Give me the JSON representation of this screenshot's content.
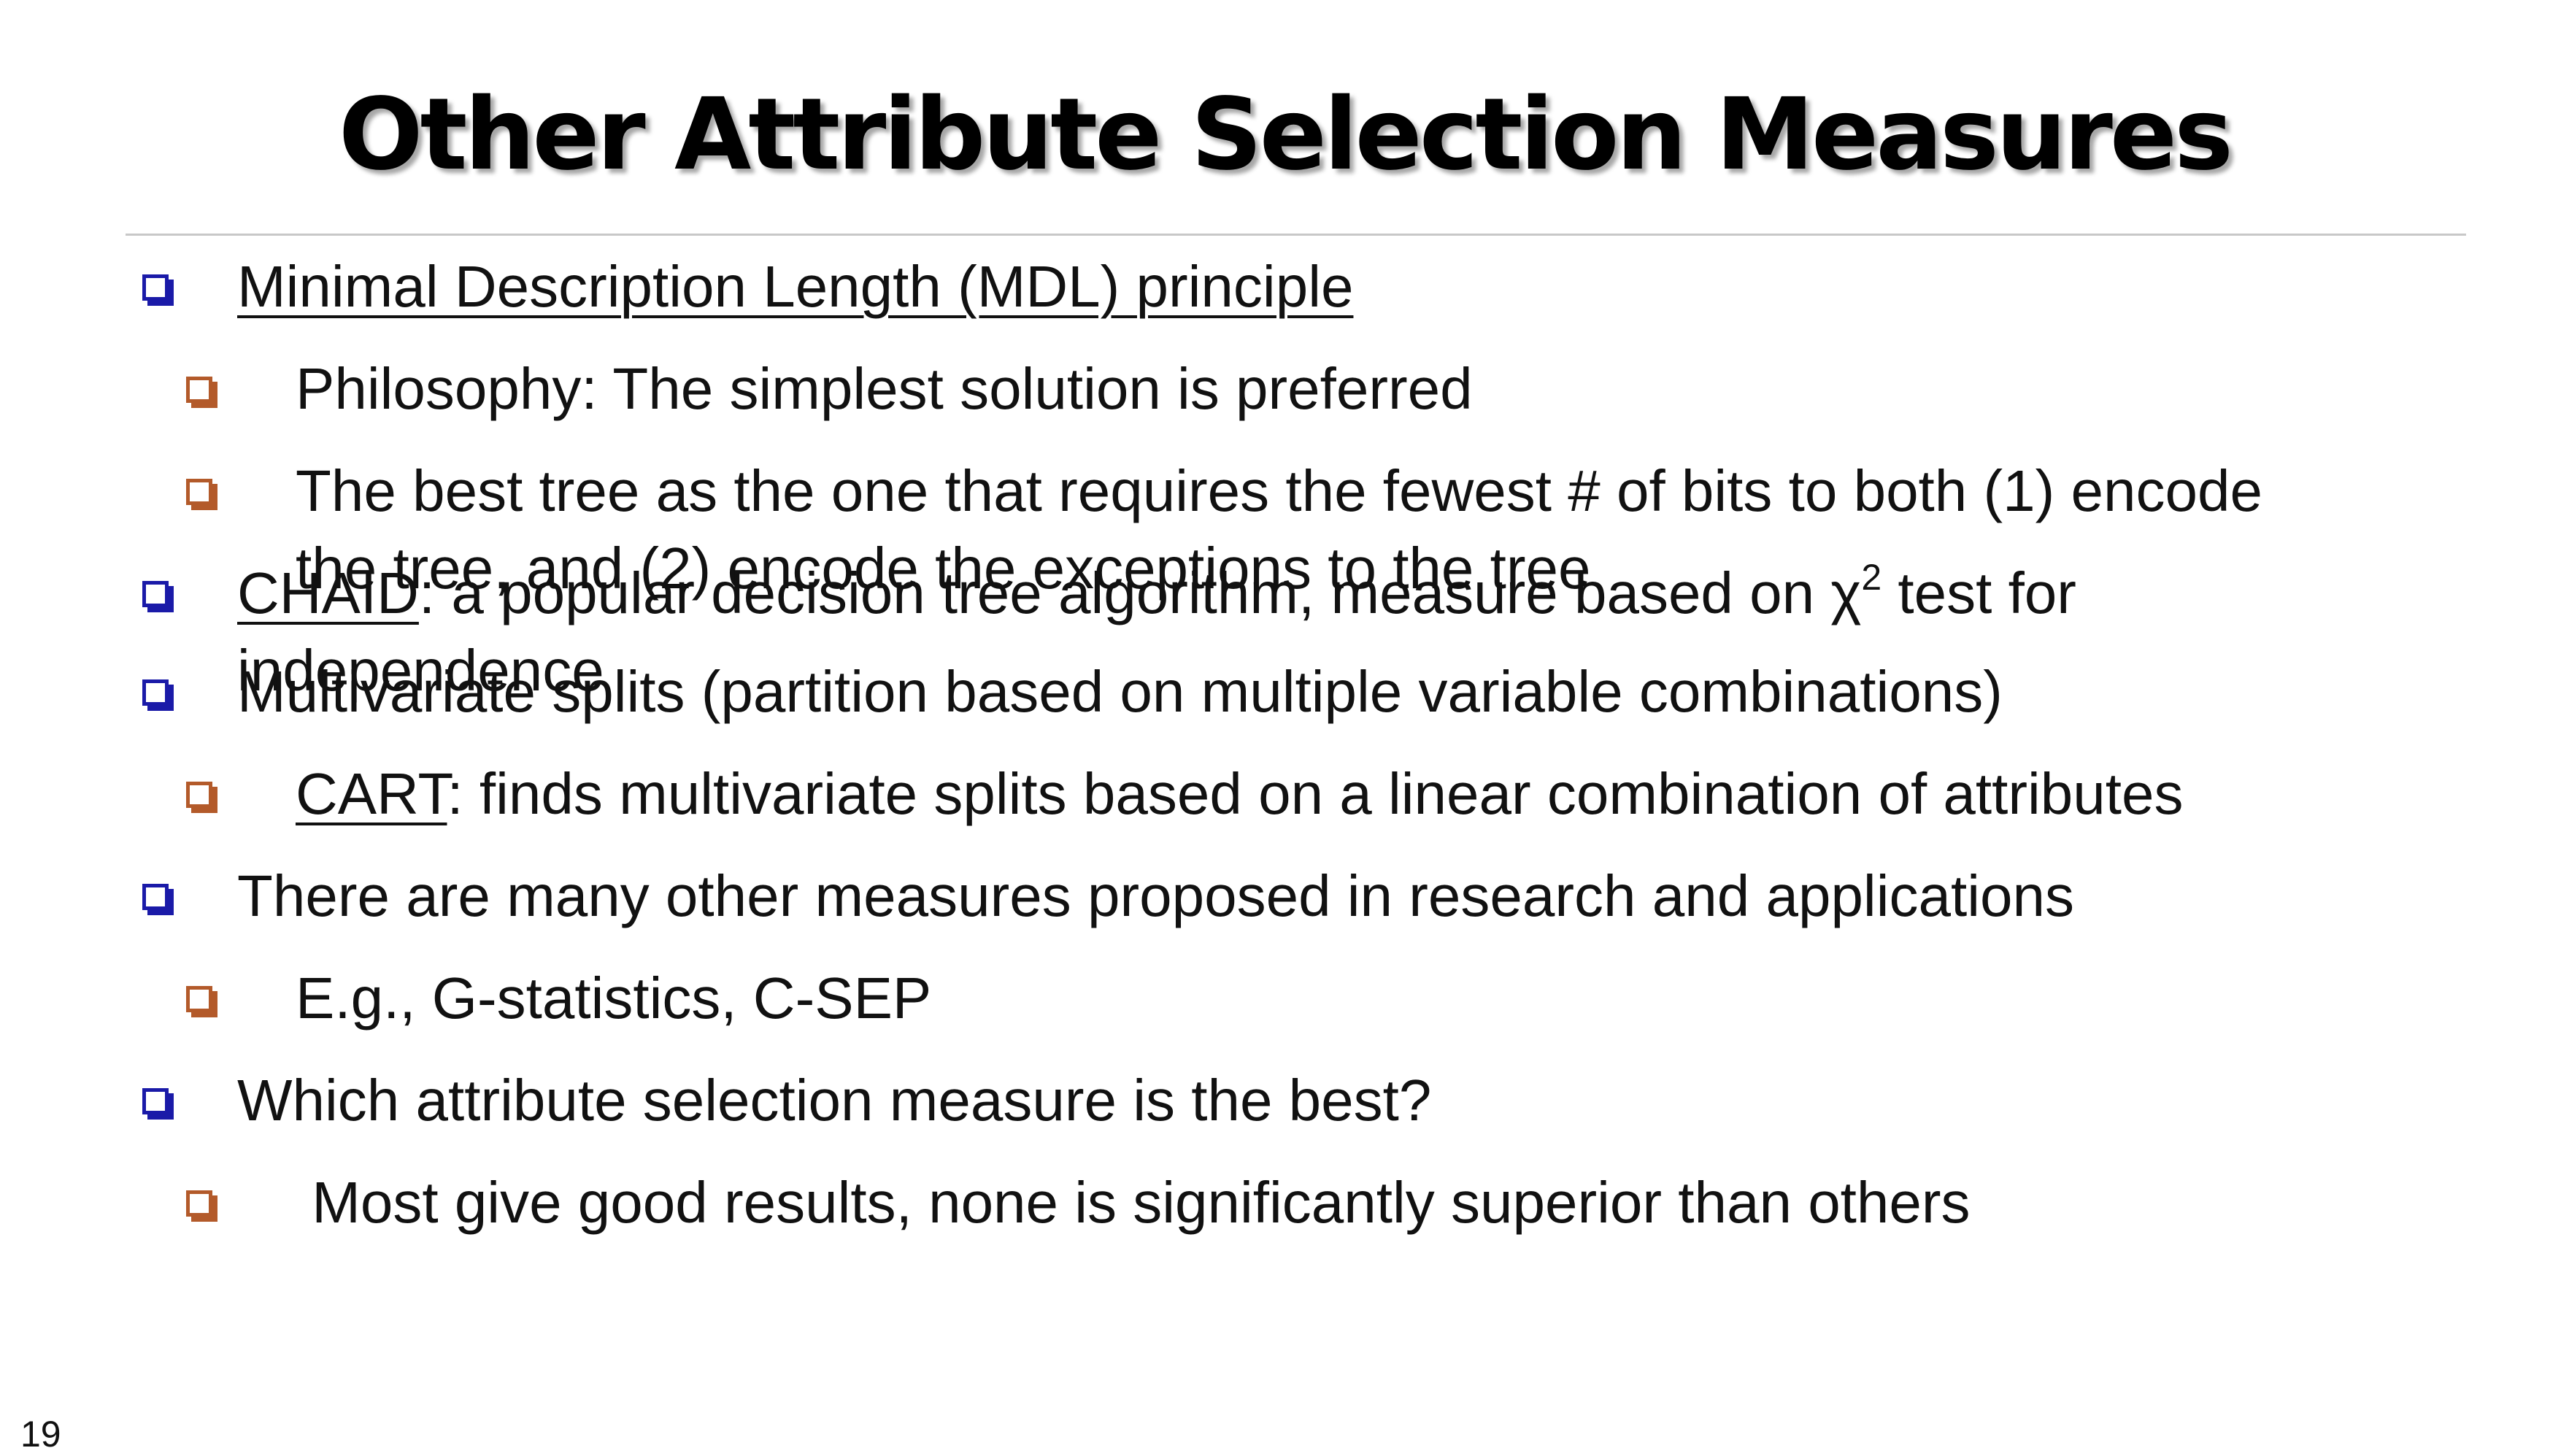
{
  "slide": {
    "title": "Other Attribute Selection Measures",
    "page_number": "19"
  },
  "bullets": [
    {
      "level": 1,
      "lines": [
        {
          "u": "Minimal Description Length (MDL) principle"
        }
      ]
    },
    {
      "level": 2,
      "lines": [
        {
          "t": "Philosophy: The simplest solution is preferred"
        }
      ]
    },
    {
      "level": 2,
      "lines": [
        {
          "t": "The best tree as the one that requires the fewest # of bits to both (1) encode"
        },
        {
          "t": "the tree, and (2) encode the exceptions to the tree"
        }
      ]
    },
    {
      "level": 1,
      "lines": [
        {
          "u": "CHAID",
          "t": ": a popular decision tree algorithm, measure based on χ",
          "sup": "2",
          "t2": " test for"
        },
        {
          "t": "independence"
        }
      ]
    },
    {
      "level": 1,
      "lines": [
        {
          "t": "Multivariate splits (partition based on multiple variable combinations)"
        }
      ]
    },
    {
      "level": 2,
      "lines": [
        {
          "u": "CART",
          "t": ": finds multivariate splits based on a linear combination of attributes"
        }
      ]
    },
    {
      "level": 1,
      "lines": [
        {
          "t": "There are many other measures proposed in research and applications"
        }
      ]
    },
    {
      "level": 2,
      "lines": [
        {
          "t": "E.g., G-statistics, C-SEP"
        }
      ]
    },
    {
      "level": 1,
      "lines": [
        {
          "t": "Which attribute selection measure is the best?"
        }
      ]
    },
    {
      "level": 2,
      "lines": [
        {
          "t": " Most give good results, none is significantly superior than others"
        }
      ]
    }
  ],
  "colors": {
    "level1_bullet": "#1a1aa8",
    "level2_bullet": "#b35a2a",
    "divider": "#c8c8c8"
  }
}
